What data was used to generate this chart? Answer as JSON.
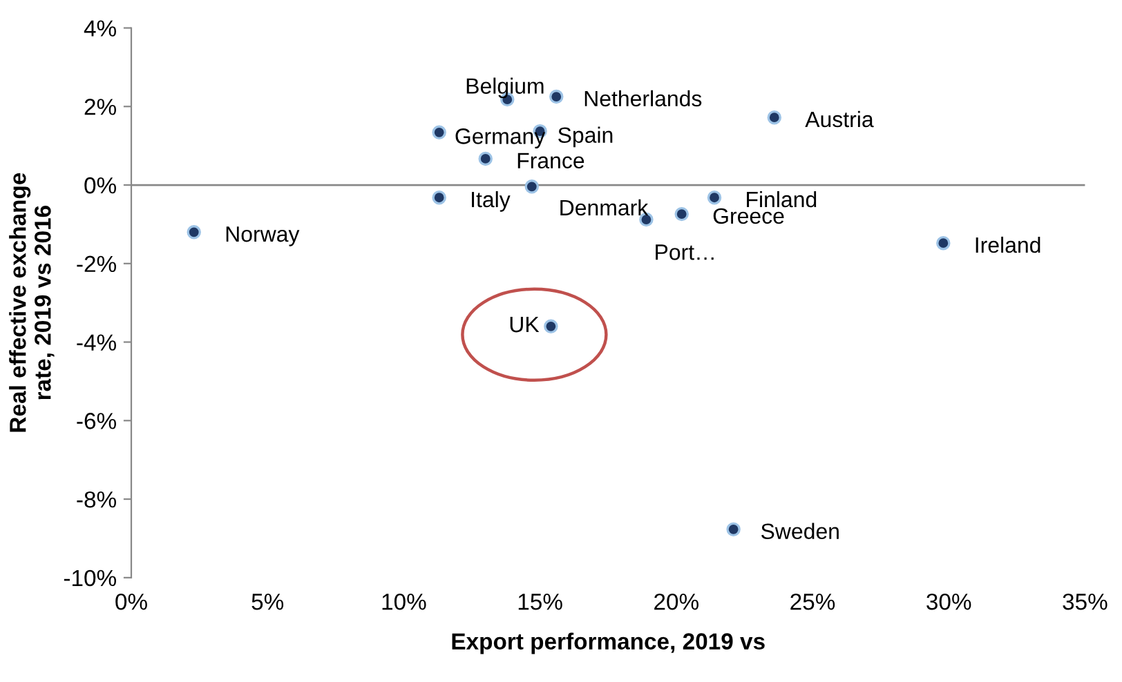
{
  "chart_data": {
    "type": "scatter",
    "xlabel": "Export performance, 2019 vs",
    "ylabel": "Real effective exchange\nrate, 2019 vs 2016",
    "marker": "circle",
    "grid": false,
    "legend": false,
    "ref_lines": [
      {
        "axis": "y",
        "value": 0,
        "color": "#888888"
      }
    ],
    "series": [
      {
        "color": "#1f3864",
        "x": [
          2.3,
          13.8,
          15.6,
          11.3,
          15.0,
          23.6,
          13.0,
          11.3,
          14.7,
          21.4,
          20.2,
          18.9,
          29.8,
          15.4,
          22.1
        ],
        "values": [
          -1.2,
          2.18,
          2.25,
          1.34,
          1.37,
          1.72,
          0.67,
          -0.32,
          -0.04,
          -0.32,
          -0.74,
          -0.88,
          -1.48,
          -3.6,
          -8.77
        ]
      }
    ],
    "annotations": [
      {
        "text": "Norway",
        "x": 2.3,
        "y": -1.2
      },
      {
        "text": "Belgium",
        "x": 13.8,
        "y": 2.18
      },
      {
        "text": "Netherlands",
        "x": 15.6,
        "y": 2.25
      },
      {
        "text": "Germany",
        "x": 11.3,
        "y": 1.34
      },
      {
        "text": "Spain",
        "x": 15.0,
        "y": 1.37
      },
      {
        "text": "Austria",
        "x": 23.6,
        "y": 1.72
      },
      {
        "text": "France",
        "x": 13.0,
        "y": 0.67
      },
      {
        "text": "Italy",
        "x": 11.3,
        "y": -0.32
      },
      {
        "text": "Denmark",
        "x": 14.7,
        "y": -0.04
      },
      {
        "text": "Finland",
        "x": 21.4,
        "y": -0.32
      },
      {
        "text": "Greece",
        "x": 20.2,
        "y": -0.74
      },
      {
        "text": "Port…",
        "x": 18.9,
        "y": -0.88
      },
      {
        "text": "Ireland",
        "x": 29.8,
        "y": -1.48
      },
      {
        "text": "UK",
        "x": 15.4,
        "y": -3.6
      },
      {
        "text": "Sweden",
        "x": 22.1,
        "y": -8.77
      }
    ],
    "xlim": [
      0,
      35
    ],
    "xticks": [
      {
        "value": 0,
        "label": "0%"
      },
      {
        "value": 5,
        "label": "5%"
      },
      {
        "value": 10,
        "label": "10%"
      },
      {
        "value": 15,
        "label": "15%"
      },
      {
        "value": 20,
        "label": "20%"
      },
      {
        "value": 25,
        "label": "25%"
      },
      {
        "value": 30,
        "label": "30%"
      },
      {
        "value": 35,
        "label": "35%"
      }
    ],
    "ylim": [
      -10,
      4
    ],
    "yticks": [
      {
        "value": -10,
        "label": "-10%"
      },
      {
        "value": -8,
        "label": "-8%"
      },
      {
        "value": -6,
        "label": "-6%"
      },
      {
        "value": -4,
        "label": "-4%"
      },
      {
        "value": -2,
        "label": "-2%"
      },
      {
        "value": 0,
        "label": "0%"
      },
      {
        "value": 2,
        "label": "2%"
      },
      {
        "value": 4,
        "label": "4%"
      }
    ]
  }
}
